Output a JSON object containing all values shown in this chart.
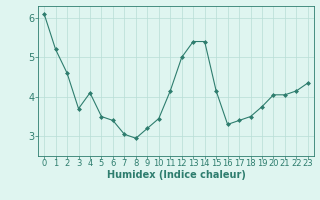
{
  "x": [
    0,
    1,
    2,
    3,
    4,
    5,
    6,
    7,
    8,
    9,
    10,
    11,
    12,
    13,
    14,
    15,
    16,
    17,
    18,
    19,
    20,
    21,
    22,
    23
  ],
  "y": [
    6.1,
    5.2,
    4.6,
    3.7,
    4.1,
    3.5,
    3.4,
    3.05,
    2.95,
    3.2,
    3.45,
    4.15,
    5.0,
    5.4,
    5.4,
    4.15,
    3.3,
    3.4,
    3.5,
    3.75,
    4.05,
    4.05,
    4.15,
    4.35
  ],
  "ylim": [
    2.5,
    6.3
  ],
  "yticks": [
    3,
    4,
    5,
    6
  ],
  "xlabel": "Humidex (Indice chaleur)",
  "line_color": "#2e7d6e",
  "marker": "D",
  "marker_size": 2,
  "bg_color": "#dff5f0",
  "grid_color": "#b8ddd6",
  "tick_fontsize": 6,
  "xlabel_fontsize": 7,
  "ytick_fontsize": 7,
  "linewidth": 0.8
}
